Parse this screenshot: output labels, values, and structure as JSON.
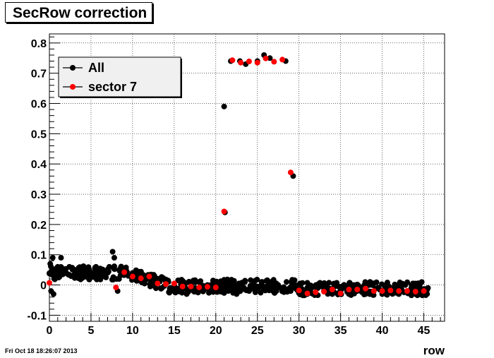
{
  "chart_data": {
    "type": "scatter",
    "title": "SecRow correction",
    "xlabel": "row",
    "ylabel": "",
    "xlim": [
      0,
      47.5
    ],
    "ylim": [
      -0.12,
      0.83
    ],
    "x_ticks": [
      0,
      5,
      10,
      15,
      20,
      25,
      30,
      35,
      40,
      45
    ],
    "y_ticks": [
      -0.1,
      0,
      0.1,
      0.2,
      0.3,
      0.4,
      0.5,
      0.6,
      0.7,
      0.8
    ],
    "grid": true,
    "legend_position": "top-left",
    "series": [
      {
        "name": "All",
        "color": "#000000",
        "points": [
          [
            0.1,
            0.07
          ],
          [
            0.2,
            -0.02
          ],
          [
            0.3,
            0.05
          ],
          [
            0.4,
            0.09
          ],
          [
            0.5,
            -0.03
          ],
          [
            0.6,
            0.02
          ],
          [
            0.8,
            0.04
          ],
          [
            1.0,
            0.06
          ],
          [
            1.2,
            0.03
          ],
          [
            1.4,
            0.09
          ],
          [
            1.6,
            0.05
          ],
          [
            2.0,
            0.04
          ],
          [
            2.4,
            0.06
          ],
          [
            2.8,
            0.03
          ],
          [
            3.2,
            0.05
          ],
          [
            3.6,
            0.04
          ],
          [
            4.0,
            0.06
          ],
          [
            4.4,
            0.03
          ],
          [
            4.8,
            0.05
          ],
          [
            5.2,
            0.04
          ],
          [
            5.6,
            0.06
          ],
          [
            6.0,
            0.03
          ],
          [
            6.4,
            0.05
          ],
          [
            6.8,
            0.04
          ],
          [
            7.2,
            0.06
          ],
          [
            7.6,
            0.11
          ],
          [
            7.8,
            0.09
          ],
          [
            8.2,
            -0.02
          ],
          [
            8.6,
            0.05
          ],
          [
            9.0,
            0.04
          ],
          [
            9.5,
            0.03
          ],
          [
            10.0,
            0.04
          ],
          [
            10.5,
            0.02
          ],
          [
            11.0,
            0.03
          ],
          [
            11.5,
            0.02
          ],
          [
            12.0,
            0.02
          ],
          [
            12.5,
            0.03
          ],
          [
            13.0,
            0.01
          ],
          [
            13.5,
            0.02
          ],
          [
            14.0,
            0.01
          ],
          [
            14.5,
            -0.01
          ],
          [
            15.0,
            0.0
          ],
          [
            15.5,
            -0.02
          ],
          [
            16.0,
            0.01
          ],
          [
            16.5,
            -0.03
          ],
          [
            17.0,
            0.0
          ],
          [
            17.5,
            -0.01
          ],
          [
            18.0,
            0.01
          ],
          [
            18.5,
            -0.02
          ],
          [
            19.0,
            0.0
          ],
          [
            19.5,
            -0.01
          ],
          [
            20.0,
            0.0
          ],
          [
            20.5,
            0.01
          ],
          [
            21.0,
            0.59
          ],
          [
            21.1,
            0.24
          ],
          [
            21.5,
            -0.02
          ],
          [
            21.8,
            0.74
          ],
          [
            22.0,
            0.01
          ],
          [
            22.5,
            -0.03
          ],
          [
            22.9,
            0.74
          ],
          [
            23.0,
            -0.01
          ],
          [
            23.5,
            0.01
          ],
          [
            23.6,
            0.73
          ],
          [
            24.0,
            -0.02
          ],
          [
            24.5,
            0.0
          ],
          [
            25.0,
            0.74
          ],
          [
            25.5,
            0.01
          ],
          [
            25.8,
            0.76
          ],
          [
            26.0,
            -0.01
          ],
          [
            26.5,
            0.75
          ],
          [
            27.0,
            -0.02
          ],
          [
            27.5,
            0.0
          ],
          [
            28.0,
            -0.01
          ],
          [
            28.4,
            0.74
          ],
          [
            28.5,
            0.01
          ],
          [
            29.0,
            -0.02
          ],
          [
            29.3,
            0.36
          ],
          [
            29.5,
            -0.01
          ],
          [
            30.0,
            0.0
          ],
          [
            30.5,
            -0.03
          ],
          [
            31.0,
            -0.02
          ],
          [
            31.5,
            -0.01
          ],
          [
            32.0,
            -0.03
          ],
          [
            32.5,
            0.0
          ],
          [
            33.0,
            -0.02
          ],
          [
            33.5,
            -0.01
          ],
          [
            34.0,
            -0.03
          ],
          [
            34.5,
            0.0
          ],
          [
            35.0,
            -0.02
          ],
          [
            35.5,
            -0.01
          ],
          [
            36.0,
            -0.03
          ],
          [
            36.5,
            0.0
          ],
          [
            37.0,
            -0.02
          ],
          [
            37.5,
            -0.01
          ],
          [
            38.0,
            -0.03
          ],
          [
            38.5,
            0.0
          ],
          [
            39.0,
            -0.02
          ],
          [
            39.5,
            -0.01
          ],
          [
            40.0,
            -0.03
          ],
          [
            40.5,
            0.0
          ],
          [
            41.0,
            -0.02
          ],
          [
            41.5,
            -0.01
          ],
          [
            42.0,
            -0.03
          ],
          [
            42.5,
            0.0
          ],
          [
            43.0,
            -0.02
          ],
          [
            43.5,
            -0.01
          ],
          [
            44.0,
            -0.03
          ],
          [
            44.5,
            0.0
          ],
          [
            45.0,
            -0.02
          ],
          [
            45.5,
            -0.01
          ]
        ]
      },
      {
        "name": "sector 7",
        "color": "#ff0000",
        "points": [
          [
            0,
            0.007
          ],
          [
            8,
            -0.008
          ],
          [
            9,
            0.042
          ],
          [
            10,
            0.028
          ],
          [
            11,
            0.022
          ],
          [
            12,
            0.028
          ],
          [
            13,
            0.005
          ],
          [
            14,
            0.003
          ],
          [
            15,
            0.005
          ],
          [
            16,
            -0.005
          ],
          [
            17,
            -0.005
          ],
          [
            18,
            -0.008
          ],
          [
            19,
            -0.006
          ],
          [
            20,
            -0.008
          ],
          [
            21,
            0.243
          ],
          [
            22,
            0.743
          ],
          [
            23,
            0.735
          ],
          [
            24,
            0.739
          ],
          [
            25,
            0.735
          ],
          [
            26,
            0.749
          ],
          [
            27,
            0.738
          ],
          [
            28,
            0.745
          ],
          [
            29,
            0.372
          ],
          [
            30,
            -0.018
          ],
          [
            31,
            -0.028
          ],
          [
            32,
            -0.024
          ],
          [
            33,
            -0.022
          ],
          [
            34,
            -0.015
          ],
          [
            35,
            -0.028
          ],
          [
            36,
            -0.015
          ],
          [
            37,
            -0.015
          ],
          [
            38,
            -0.012
          ],
          [
            39,
            -0.02
          ],
          [
            40,
            -0.02
          ],
          [
            41,
            -0.018
          ],
          [
            42,
            -0.02
          ],
          [
            43,
            -0.02
          ],
          [
            44,
            -0.022
          ],
          [
            45,
            -0.02
          ]
        ]
      }
    ]
  },
  "footer": {
    "timestamp": "Fri Oct 18 18:26:07 2013"
  }
}
